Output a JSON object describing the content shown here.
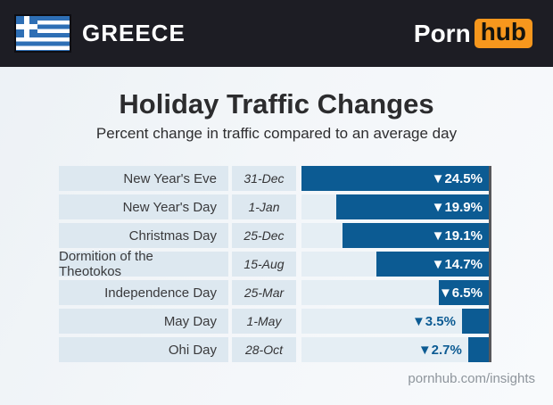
{
  "header": {
    "country": "GREECE",
    "flag_name": "greece-flag",
    "logo": {
      "part1": "Porn",
      "part2": "hub"
    }
  },
  "title": "Holiday Traffic Changes",
  "subtitle": "Percent change in traffic compared to an average day",
  "footer": "pornhub.com/insights",
  "colors": {
    "header_bg": "#1d1d24",
    "flag_blue": "#2e6fb5",
    "logo_orange": "#f7971d",
    "bar_blue": "#0c5b93",
    "row_label_bg": "#dde8f0",
    "bar_track_bg": "#e5eef4",
    "axis_line": "#57575b"
  },
  "chart_data": {
    "type": "bar",
    "orientation": "horizontal",
    "title": "Holiday Traffic Changes",
    "subtitle": "Percent change in traffic compared to an average day",
    "value_unit": "%",
    "direction_symbol": "▼",
    "max_abs_value": 24.5,
    "inside_label_threshold": 5,
    "rows": [
      {
        "holiday": "New Year's Eve",
        "date": "31-Dec",
        "change_pct": -24.5,
        "label": "▼24.5%"
      },
      {
        "holiday": "New Year's Day",
        "date": "1-Jan",
        "change_pct": -19.9,
        "label": "▼19.9%"
      },
      {
        "holiday": "Christmas Day",
        "date": "25-Dec",
        "change_pct": -19.1,
        "label": "▼19.1%"
      },
      {
        "holiday": "Dormition of the Theotokos",
        "date": "15-Aug",
        "change_pct": -14.7,
        "label": "▼14.7%"
      },
      {
        "holiday": "Independence Day",
        "date": "25-Mar",
        "change_pct": -6.5,
        "label": "▼6.5%"
      },
      {
        "holiday": "May Day",
        "date": "1-May",
        "change_pct": -3.5,
        "label": "▼3.5%"
      },
      {
        "holiday": "Ohi Day",
        "date": "28-Oct",
        "change_pct": -2.7,
        "label": "▼2.7%"
      }
    ]
  }
}
